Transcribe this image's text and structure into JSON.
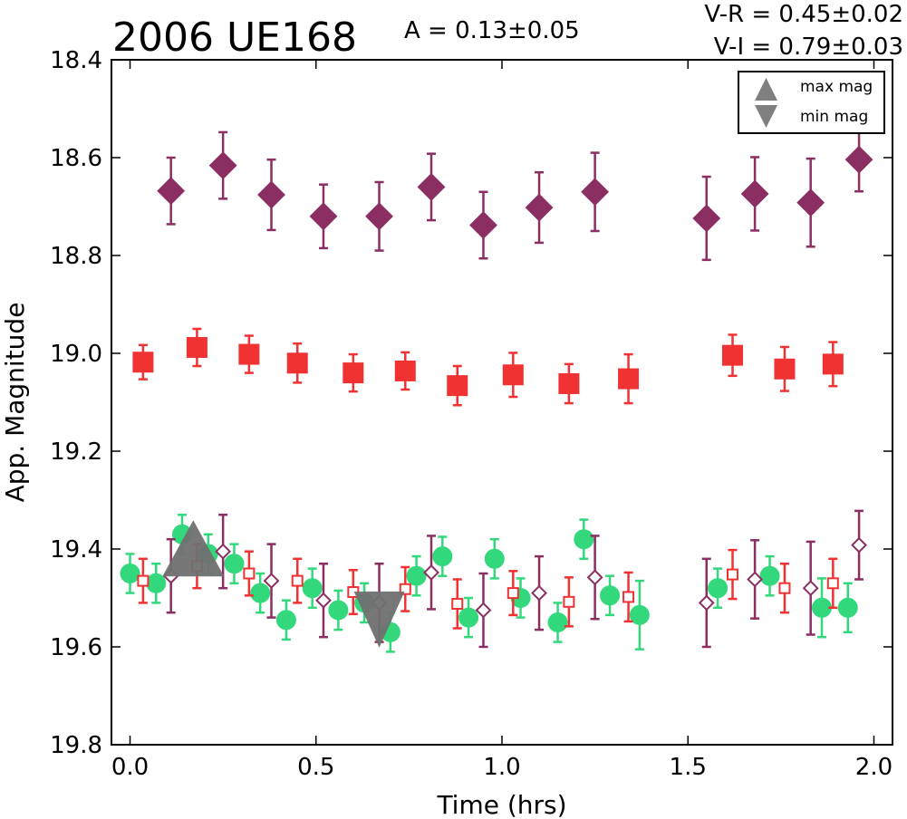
{
  "chart_data": {
    "type": "scatter",
    "title": "2006 UE168",
    "amplitude_label": "A  = 0.13±0.05",
    "color_labels": [
      "V-R = 0.45±0.02",
      "V-I  = 0.79±0.03"
    ],
    "xlabel": "Time (hrs)",
    "ylabel": "App. Magnitude",
    "xlim": [
      -0.05,
      2.05
    ],
    "ylim": [
      19.8,
      18.4
    ],
    "y_inverted": true,
    "grid": false,
    "xticks": [
      {
        "value": 0.0,
        "label": "0.0"
      },
      {
        "value": 0.5,
        "label": "0.5"
      },
      {
        "value": 1.0,
        "label": "1.0"
      },
      {
        "value": 1.5,
        "label": "1.5"
      },
      {
        "value": 2.0,
        "label": "2.0"
      }
    ],
    "yticks": [
      {
        "value": 18.4,
        "label": "18.4"
      },
      {
        "value": 18.6,
        "label": "18.6"
      },
      {
        "value": 18.8,
        "label": "18.8"
      },
      {
        "value": 19.0,
        "label": "19.0"
      },
      {
        "value": 19.2,
        "label": "19.2"
      },
      {
        "value": 19.4,
        "label": "19.4"
      },
      {
        "value": 19.6,
        "label": "19.6"
      },
      {
        "value": 19.8,
        "label": "19.8"
      }
    ],
    "legend": {
      "position": "top-right",
      "entries": [
        {
          "label": "max mag",
          "marker": "triangle-up",
          "color": "#808080"
        },
        {
          "label": "min mag",
          "marker": "triangle-down",
          "color": "#808080"
        }
      ]
    },
    "series": [
      {
        "marker": "diamond",
        "filled": true,
        "color": "#8B2E62",
        "points": [
          {
            "x": 0.11,
            "y": 18.668,
            "err": 0.068
          },
          {
            "x": 0.25,
            "y": 18.616,
            "err": 0.068
          },
          {
            "x": 0.38,
            "y": 18.676,
            "err": 0.072
          },
          {
            "x": 0.52,
            "y": 18.72,
            "err": 0.065
          },
          {
            "x": 0.67,
            "y": 18.72,
            "err": 0.07
          },
          {
            "x": 0.81,
            "y": 18.66,
            "err": 0.068
          },
          {
            "x": 0.95,
            "y": 18.738,
            "err": 0.068
          },
          {
            "x": 1.1,
            "y": 18.702,
            "err": 0.072
          },
          {
            "x": 1.25,
            "y": 18.67,
            "err": 0.08
          },
          {
            "x": 1.55,
            "y": 18.724,
            "err": 0.085
          },
          {
            "x": 1.68,
            "y": 18.674,
            "err": 0.075
          },
          {
            "x": 1.83,
            "y": 18.692,
            "err": 0.09
          },
          {
            "x": 1.96,
            "y": 18.604,
            "err": 0.065
          }
        ]
      },
      {
        "marker": "square",
        "filled": true,
        "color": "#F03232",
        "points": [
          {
            "x": 0.035,
            "y": 19.018,
            "err": 0.035
          },
          {
            "x": 0.18,
            "y": 18.988,
            "err": 0.038
          },
          {
            "x": 0.32,
            "y": 19.002,
            "err": 0.038
          },
          {
            "x": 0.45,
            "y": 19.02,
            "err": 0.04
          },
          {
            "x": 0.6,
            "y": 19.04,
            "err": 0.038
          },
          {
            "x": 0.74,
            "y": 19.036,
            "err": 0.038
          },
          {
            "x": 0.88,
            "y": 19.066,
            "err": 0.04
          },
          {
            "x": 1.03,
            "y": 19.044,
            "err": 0.045
          },
          {
            "x": 1.18,
            "y": 19.062,
            "err": 0.04
          },
          {
            "x": 1.34,
            "y": 19.052,
            "err": 0.05
          },
          {
            "x": 1.62,
            "y": 19.004,
            "err": 0.042
          },
          {
            "x": 1.76,
            "y": 19.032,
            "err": 0.045
          },
          {
            "x": 1.89,
            "y": 19.022,
            "err": 0.045
          }
        ]
      },
      {
        "marker": "circle",
        "filled": true,
        "color": "#33D87C",
        "points": [
          {
            "x": 0.0,
            "y": 19.45,
            "err": 0.04
          },
          {
            "x": 0.07,
            "y": 19.47,
            "err": 0.04
          },
          {
            "x": 0.14,
            "y": 19.37,
            "err": 0.04
          },
          {
            "x": 0.21,
            "y": 19.41,
            "err": 0.04
          },
          {
            "x": 0.28,
            "y": 19.43,
            "err": 0.04
          },
          {
            "x": 0.35,
            "y": 19.49,
            "err": 0.04
          },
          {
            "x": 0.42,
            "y": 19.545,
            "err": 0.04
          },
          {
            "x": 0.49,
            "y": 19.48,
            "err": 0.04
          },
          {
            "x": 0.56,
            "y": 19.525,
            "err": 0.04
          },
          {
            "x": 0.63,
            "y": 19.51,
            "err": 0.04
          },
          {
            "x": 0.7,
            "y": 19.57,
            "err": 0.04
          },
          {
            "x": 0.77,
            "y": 19.455,
            "err": 0.04
          },
          {
            "x": 0.84,
            "y": 19.415,
            "err": 0.04
          },
          {
            "x": 0.91,
            "y": 19.54,
            "err": 0.04
          },
          {
            "x": 0.98,
            "y": 19.42,
            "err": 0.04
          },
          {
            "x": 1.05,
            "y": 19.5,
            "err": 0.04
          },
          {
            "x": 1.15,
            "y": 19.55,
            "err": 0.04
          },
          {
            "x": 1.22,
            "y": 19.38,
            "err": 0.04
          },
          {
            "x": 1.29,
            "y": 19.495,
            "err": 0.04
          },
          {
            "x": 1.37,
            "y": 19.535,
            "err": 0.07
          },
          {
            "x": 1.58,
            "y": 19.48,
            "err": 0.04
          },
          {
            "x": 1.72,
            "y": 19.455,
            "err": 0.04
          },
          {
            "x": 1.86,
            "y": 19.52,
            "err": 0.06
          },
          {
            "x": 1.93,
            "y": 19.52,
            "err": 0.05
          }
        ]
      },
      {
        "marker": "square",
        "filled": false,
        "color": "#F03232",
        "points": [
          {
            "x": 0.035,
            "y": 19.465,
            "err": 0.045
          },
          {
            "x": 0.18,
            "y": 19.435,
            "err": 0.045
          },
          {
            "x": 0.32,
            "y": 19.45,
            "err": 0.045
          },
          {
            "x": 0.45,
            "y": 19.465,
            "err": 0.045
          },
          {
            "x": 0.6,
            "y": 19.488,
            "err": 0.045
          },
          {
            "x": 0.74,
            "y": 19.482,
            "err": 0.045
          },
          {
            "x": 0.88,
            "y": 19.512,
            "err": 0.05
          },
          {
            "x": 1.03,
            "y": 19.49,
            "err": 0.045
          },
          {
            "x": 1.18,
            "y": 19.508,
            "err": 0.05
          },
          {
            "x": 1.34,
            "y": 19.498,
            "err": 0.05
          },
          {
            "x": 1.62,
            "y": 19.452,
            "err": 0.05
          },
          {
            "x": 1.76,
            "y": 19.48,
            "err": 0.05
          },
          {
            "x": 1.89,
            "y": 19.47,
            "err": 0.05
          }
        ]
      },
      {
        "marker": "diamond",
        "filled": false,
        "color": "#8B2E62",
        "points": [
          {
            "x": 0.11,
            "y": 19.455,
            "err": 0.075
          },
          {
            "x": 0.25,
            "y": 19.405,
            "err": 0.075
          },
          {
            "x": 0.38,
            "y": 19.465,
            "err": 0.075
          },
          {
            "x": 0.52,
            "y": 19.505,
            "err": 0.075
          },
          {
            "x": 0.67,
            "y": 19.51,
            "err": 0.08
          },
          {
            "x": 0.81,
            "y": 19.448,
            "err": 0.075
          },
          {
            "x": 0.95,
            "y": 19.525,
            "err": 0.075
          },
          {
            "x": 1.1,
            "y": 19.49,
            "err": 0.075
          },
          {
            "x": 1.25,
            "y": 19.458,
            "err": 0.085
          },
          {
            "x": 1.55,
            "y": 19.51,
            "err": 0.09
          },
          {
            "x": 1.68,
            "y": 19.462,
            "err": 0.08
          },
          {
            "x": 1.83,
            "y": 19.48,
            "err": 0.095
          },
          {
            "x": 1.96,
            "y": 19.392,
            "err": 0.07
          }
        ]
      },
      {
        "marker": "triangle-up",
        "filled": true,
        "color": "#707070",
        "points": [
          {
            "x": 0.17,
            "y": 19.43
          }
        ]
      },
      {
        "marker": "triangle-down",
        "filled": true,
        "color": "#707070",
        "points": [
          {
            "x": 0.67,
            "y": 19.535
          }
        ]
      }
    ]
  }
}
